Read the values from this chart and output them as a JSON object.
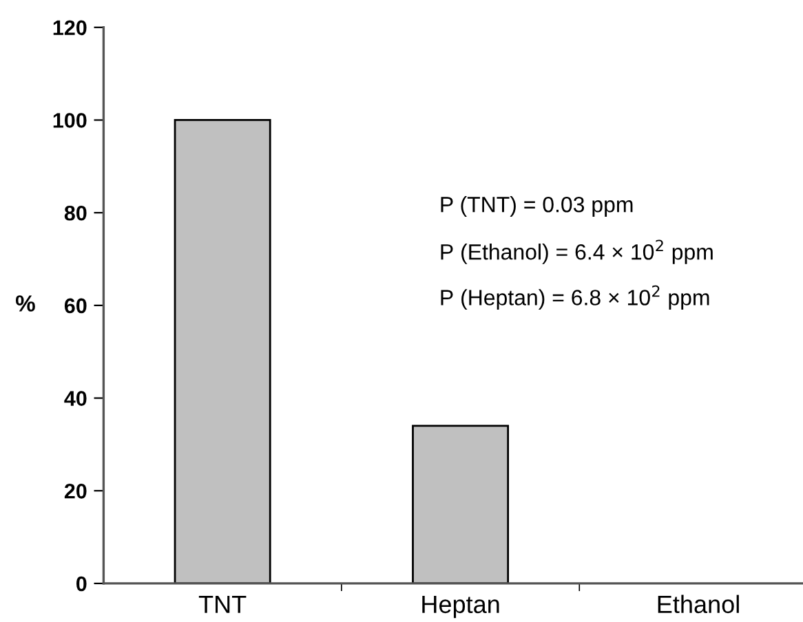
{
  "chart_data": {
    "type": "bar",
    "ylabel": "%",
    "categories": [
      "TNT",
      "Heptan",
      "Ethanol"
    ],
    "values": [
      100,
      34,
      0
    ],
    "color": "#c0c0c0",
    "ylim": [
      0,
      120
    ],
    "yticks": [
      0,
      20,
      40,
      60,
      80,
      100,
      120
    ],
    "grid": false,
    "legend": false,
    "annotations": [
      "P (TNT) = 0.03 ppm",
      "P (Ethanol) = 6.4 × 10$^{2}$ ppm",
      "P (Heptan) = 6.8 × 10$^{2}$ ppm"
    ]
  }
}
